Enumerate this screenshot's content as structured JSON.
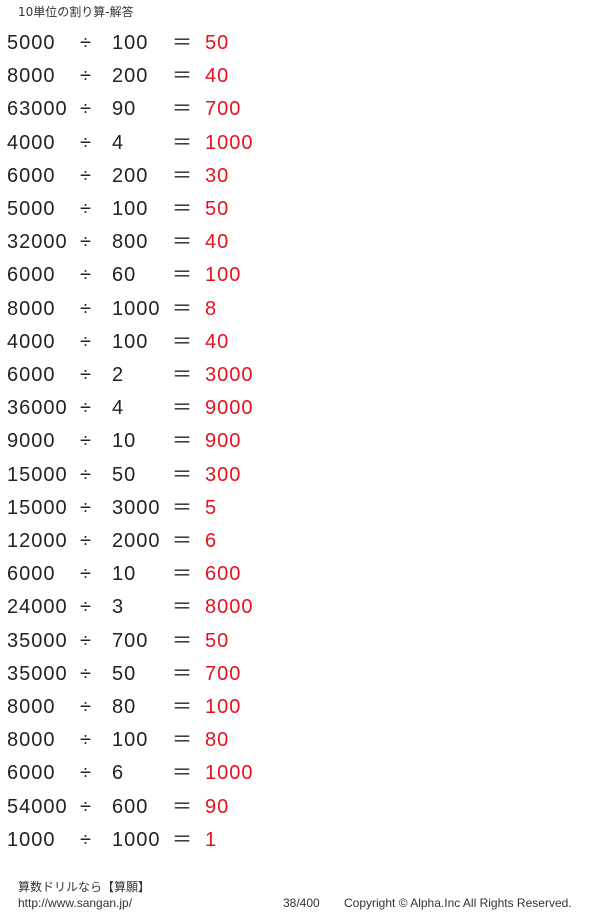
{
  "title": "10単位の割り算-解答",
  "answer_color": "#e8101e",
  "operator": "÷",
  "equals": "＝",
  "problems": [
    [
      "5000",
      "100",
      "50"
    ],
    [
      "8000",
      "200",
      "40"
    ],
    [
      "63000",
      "90",
      "700"
    ],
    [
      "4000",
      "4",
      "1000"
    ],
    [
      "6000",
      "200",
      "30"
    ],
    [
      "5000",
      "100",
      "50"
    ],
    [
      "32000",
      "800",
      "40"
    ],
    [
      "6000",
      "60",
      "100"
    ],
    [
      "8000",
      "1000",
      "8"
    ],
    [
      "4000",
      "100",
      "40"
    ],
    [
      "6000",
      "2",
      "3000"
    ],
    [
      "36000",
      "4",
      "9000"
    ],
    [
      "9000",
      "10",
      "900"
    ],
    [
      "15000",
      "50",
      "300"
    ],
    [
      "15000",
      "3000",
      "5"
    ],
    [
      "12000",
      "2000",
      "6"
    ],
    [
      "6000",
      "10",
      "600"
    ],
    [
      "24000",
      "3",
      "8000"
    ],
    [
      "35000",
      "700",
      "50"
    ],
    [
      "35000",
      "50",
      "700"
    ],
    [
      "8000",
      "80",
      "100"
    ],
    [
      "8000",
      "100",
      "80"
    ],
    [
      "6000",
      "6",
      "1000"
    ],
    [
      "54000",
      "600",
      "90"
    ],
    [
      "1000",
      "1000",
      "1"
    ]
  ],
  "footer": {
    "brand": "算数ドリルなら【算願】",
    "url": "http://www.sangan.jp/",
    "page": "38/400",
    "copyright": "Copyright © Alpha.Inc All Rights Reserved."
  }
}
